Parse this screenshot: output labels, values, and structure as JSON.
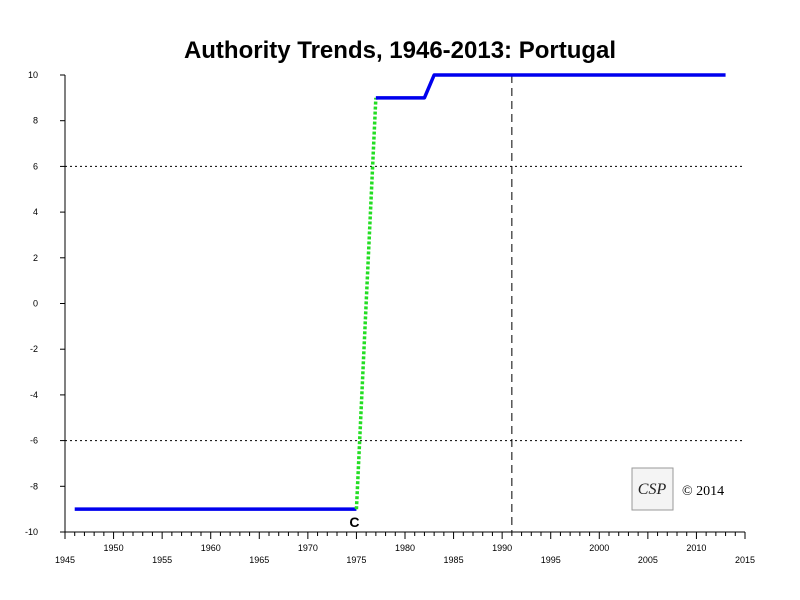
{
  "chart_data": {
    "type": "line",
    "title": "Authority Trends, 1946-2013: Portugal",
    "xlabel": "",
    "ylabel": "",
    "xlim": [
      1945,
      2015
    ],
    "ylim": [
      -10,
      10
    ],
    "x_ticks_major": [
      1945,
      1950,
      1955,
      1960,
      1965,
      1970,
      1975,
      1980,
      1985,
      1990,
      1995,
      2000,
      2005,
      2010,
      2015
    ],
    "y_ticks": [
      -10,
      -8,
      -6,
      -4,
      -2,
      0,
      2,
      4,
      6,
      8,
      10
    ],
    "grid": "off",
    "reference_lines": [
      {
        "orientation": "horizontal",
        "value": 6,
        "style": "dotted"
      },
      {
        "orientation": "horizontal",
        "value": -6,
        "style": "dotted"
      },
      {
        "orientation": "vertical",
        "value": 1991,
        "style": "dashed"
      }
    ],
    "series": [
      {
        "style": "solid",
        "color": "#0000ee",
        "points": [
          [
            1946,
            -9
          ],
          [
            1975,
            -9
          ]
        ]
      },
      {
        "style": "dotted",
        "color": "#22dd22",
        "points": [
          [
            1975,
            -9
          ],
          [
            1977,
            9
          ]
        ]
      },
      {
        "style": "solid",
        "color": "#0000ee",
        "points": [
          [
            1977,
            9
          ],
          [
            1982,
            9
          ],
          [
            1983,
            10
          ],
          [
            2013,
            10
          ]
        ]
      }
    ],
    "annotations": [
      {
        "text": "C",
        "x": 1975,
        "y": -9
      }
    ]
  },
  "logo": {
    "text": "CSP"
  },
  "copyright": "© 2014"
}
